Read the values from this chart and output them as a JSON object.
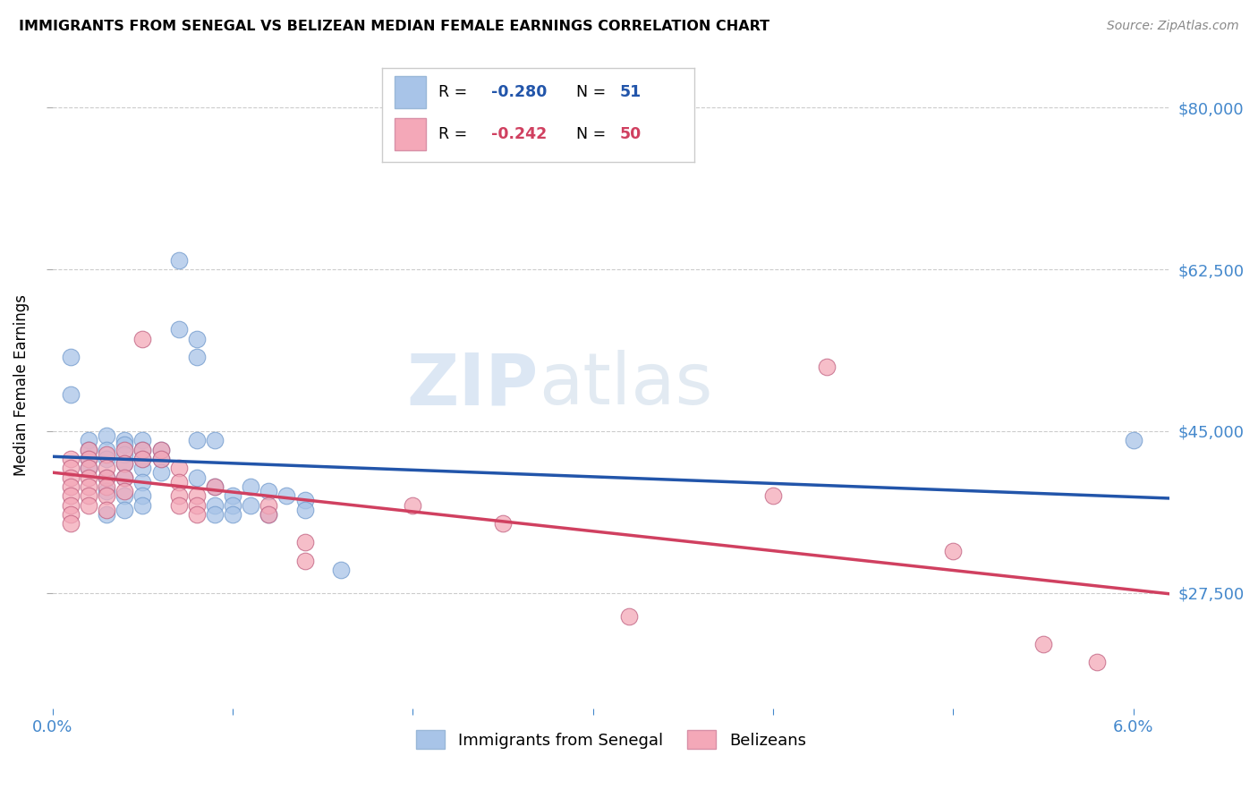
{
  "title": "IMMIGRANTS FROM SENEGAL VS BELIZEAN MEDIAN FEMALE EARNINGS CORRELATION CHART",
  "source": "Source: ZipAtlas.com",
  "ylabel": "Median Female Earnings",
  "ytick_labels": [
    "$27,500",
    "$45,000",
    "$62,500",
    "$80,000"
  ],
  "ytick_values": [
    27500,
    45000,
    62500,
    80000
  ],
  "ymin": 15000,
  "ymax": 85000,
  "xmin": 0.0,
  "xmax": 0.062,
  "legend_blue_r": "-0.280",
  "legend_blue_n": "51",
  "legend_pink_r": "-0.242",
  "legend_pink_n": "50",
  "blue_color": "#a8c4e8",
  "pink_color": "#f4a8b8",
  "blue_line_color": "#2255aa",
  "pink_line_color": "#d04060",
  "blue_scatter": [
    [
      0.001,
      53000
    ],
    [
      0.001,
      49000
    ],
    [
      0.002,
      44000
    ],
    [
      0.002,
      43000
    ],
    [
      0.002,
      42000
    ],
    [
      0.002,
      41000
    ],
    [
      0.003,
      44500
    ],
    [
      0.003,
      43000
    ],
    [
      0.003,
      42000
    ],
    [
      0.003,
      40000
    ],
    [
      0.003,
      38500
    ],
    [
      0.003,
      36000
    ],
    [
      0.004,
      44000
    ],
    [
      0.004,
      43500
    ],
    [
      0.004,
      42500
    ],
    [
      0.004,
      41500
    ],
    [
      0.004,
      40000
    ],
    [
      0.004,
      38000
    ],
    [
      0.004,
      36500
    ],
    [
      0.005,
      44000
    ],
    [
      0.005,
      43000
    ],
    [
      0.005,
      42000
    ],
    [
      0.005,
      41000
    ],
    [
      0.005,
      39500
    ],
    [
      0.005,
      38000
    ],
    [
      0.005,
      37000
    ],
    [
      0.006,
      43000
    ],
    [
      0.006,
      42000
    ],
    [
      0.006,
      40500
    ],
    [
      0.007,
      63500
    ],
    [
      0.007,
      56000
    ],
    [
      0.008,
      55000
    ],
    [
      0.008,
      53000
    ],
    [
      0.008,
      44000
    ],
    [
      0.008,
      40000
    ],
    [
      0.009,
      44000
    ],
    [
      0.009,
      39000
    ],
    [
      0.009,
      37000
    ],
    [
      0.009,
      36000
    ],
    [
      0.01,
      38000
    ],
    [
      0.01,
      37000
    ],
    [
      0.01,
      36000
    ],
    [
      0.011,
      39000
    ],
    [
      0.011,
      37000
    ],
    [
      0.012,
      38500
    ],
    [
      0.012,
      36000
    ],
    [
      0.013,
      38000
    ],
    [
      0.014,
      37500
    ],
    [
      0.014,
      36500
    ],
    [
      0.016,
      30000
    ],
    [
      0.06,
      44000
    ]
  ],
  "pink_scatter": [
    [
      0.001,
      42000
    ],
    [
      0.001,
      41000
    ],
    [
      0.001,
      40000
    ],
    [
      0.001,
      39000
    ],
    [
      0.001,
      38000
    ],
    [
      0.001,
      37000
    ],
    [
      0.001,
      36000
    ],
    [
      0.001,
      35000
    ],
    [
      0.002,
      43000
    ],
    [
      0.002,
      42000
    ],
    [
      0.002,
      41000
    ],
    [
      0.002,
      40000
    ],
    [
      0.002,
      39000
    ],
    [
      0.002,
      38000
    ],
    [
      0.002,
      37000
    ],
    [
      0.003,
      42500
    ],
    [
      0.003,
      41000
    ],
    [
      0.003,
      40000
    ],
    [
      0.003,
      39000
    ],
    [
      0.003,
      38000
    ],
    [
      0.003,
      36500
    ],
    [
      0.004,
      43000
    ],
    [
      0.004,
      41500
    ],
    [
      0.004,
      40000
    ],
    [
      0.004,
      38500
    ],
    [
      0.005,
      55000
    ],
    [
      0.005,
      43000
    ],
    [
      0.005,
      42000
    ],
    [
      0.006,
      43000
    ],
    [
      0.006,
      42000
    ],
    [
      0.007,
      41000
    ],
    [
      0.007,
      39500
    ],
    [
      0.007,
      38000
    ],
    [
      0.007,
      37000
    ],
    [
      0.008,
      38000
    ],
    [
      0.008,
      37000
    ],
    [
      0.008,
      36000
    ],
    [
      0.009,
      39000
    ],
    [
      0.012,
      37000
    ],
    [
      0.012,
      36000
    ],
    [
      0.014,
      33000
    ],
    [
      0.014,
      31000
    ],
    [
      0.02,
      37000
    ],
    [
      0.025,
      35000
    ],
    [
      0.032,
      25000
    ],
    [
      0.04,
      38000
    ],
    [
      0.043,
      52000
    ],
    [
      0.05,
      32000
    ],
    [
      0.055,
      22000
    ],
    [
      0.058,
      20000
    ]
  ],
  "watermark_zip": "ZIP",
  "watermark_atlas": "atlas",
  "grid_color": "#cccccc",
  "background_color": "#ffffff"
}
